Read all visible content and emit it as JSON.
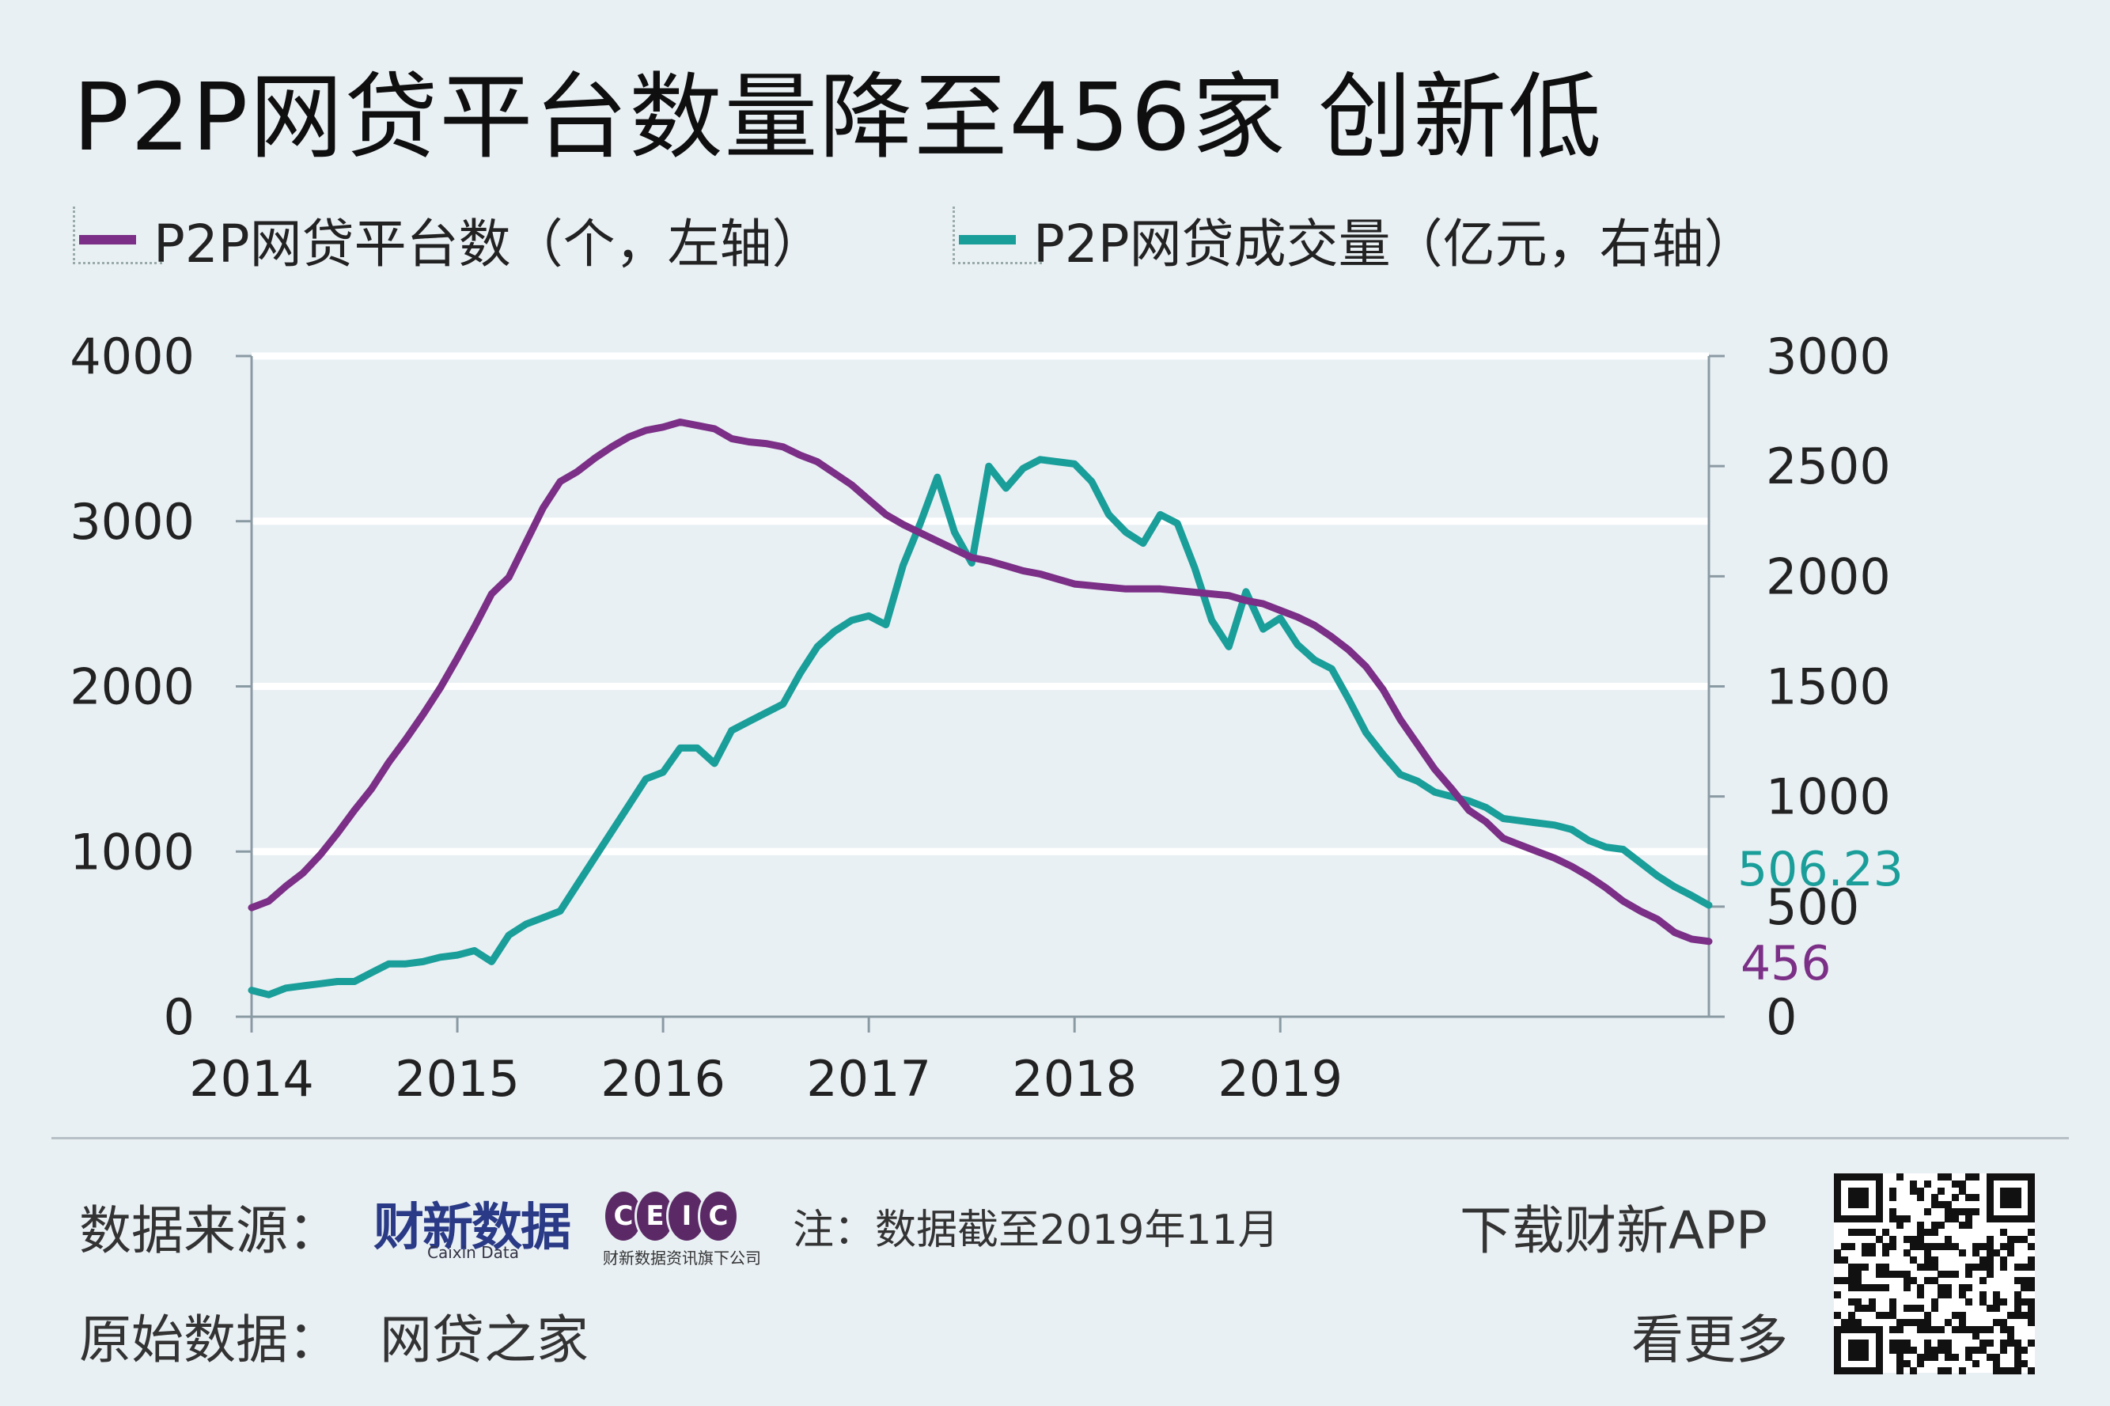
{
  "title": "P2P网贷平台数量降至456家 创新低",
  "legend": {
    "series1": "P2P网贷平台数（个，左轴）",
    "series2": "P2P网贷成交量（亿元，右轴）"
  },
  "colors": {
    "platforms": "#7b2f86",
    "volume": "#1a9e9a",
    "grid": "#ffffff",
    "background": "#e9f0f4"
  },
  "footer": {
    "source_label": "数据来源：",
    "brand": "财新数据",
    "brand_sub": "Caixin Data",
    "ceic_letters": [
      "C",
      "E",
      "I",
      "C"
    ],
    "ceic_sub": "财新数据资讯旗下公司",
    "note": "注：数据截至2019年11月",
    "download": "下载财新APP",
    "more": "看更多",
    "raw_label": "原始数据：",
    "raw_source": "网贷之家"
  },
  "chart_data": {
    "type": "line",
    "x_start": "2014-01",
    "x_end": "2019-11",
    "x_ticks": [
      "2014",
      "2015",
      "2016",
      "2017",
      "2018",
      "2019"
    ],
    "y_left": {
      "min": 0,
      "max": 4000,
      "ticks": [
        "0",
        "1000",
        "2000",
        "3000",
        "4000"
      ]
    },
    "y_right": {
      "min": 0,
      "max": 3000,
      "ticks": [
        "0",
        "500",
        "1000",
        "1500",
        "2000",
        "2500",
        "3000"
      ]
    },
    "end_labels": {
      "volume": "506.23",
      "platforms": "456"
    },
    "series": [
      {
        "name": "P2P网贷平台数（个，左轴）",
        "axis": "left",
        "values": [
          660,
          700,
          790,
          870,
          980,
          1110,
          1250,
          1380,
          1540,
          1680,
          1830,
          1990,
          2170,
          2360,
          2560,
          2660,
          2870,
          3080,
          3240,
          3300,
          3380,
          3450,
          3510,
          3550,
          3570,
          3600,
          3580,
          3560,
          3500,
          3480,
          3470,
          3450,
          3400,
          3360,
          3290,
          3220,
          3130,
          3040,
          2980,
          2930,
          2880,
          2830,
          2780,
          2760,
          2730,
          2700,
          2680,
          2650,
          2620,
          2610,
          2600,
          2590,
          2590,
          2590,
          2580,
          2570,
          2560,
          2550,
          2520,
          2500,
          2460,
          2420,
          2370,
          2300,
          2220,
          2120,
          1980,
          1800,
          1650,
          1500,
          1380,
          1250,
          1180,
          1080,
          1040,
          1000,
          960,
          910,
          850,
          780,
          700,
          640,
          590,
          510,
          470,
          456
        ]
      },
      {
        "name": "P2P网贷成交量（亿元，右轴）",
        "axis": "right",
        "values": [
          120,
          100,
          130,
          140,
          150,
          160,
          160,
          200,
          240,
          240,
          250,
          270,
          280,
          300,
          250,
          370,
          420,
          450,
          480,
          600,
          720,
          840,
          960,
          1080,
          1110,
          1220,
          1220,
          1150,
          1300,
          1340,
          1380,
          1420,
          1560,
          1680,
          1750,
          1800,
          1820,
          1780,
          2050,
          2240,
          2450,
          2200,
          2060,
          2500,
          2400,
          2490,
          2530,
          2520,
          2510,
          2430,
          2280,
          2200,
          2150,
          2280,
          2240,
          2040,
          1800,
          1680,
          1930,
          1760,
          1810,
          1690,
          1620,
          1580,
          1440,
          1290,
          1190,
          1100,
          1070,
          1020,
          1000,
          980,
          950,
          900,
          890,
          880,
          870,
          850,
          800,
          770,
          760,
          700,
          640,
          590,
          550,
          506.23
        ]
      }
    ]
  }
}
